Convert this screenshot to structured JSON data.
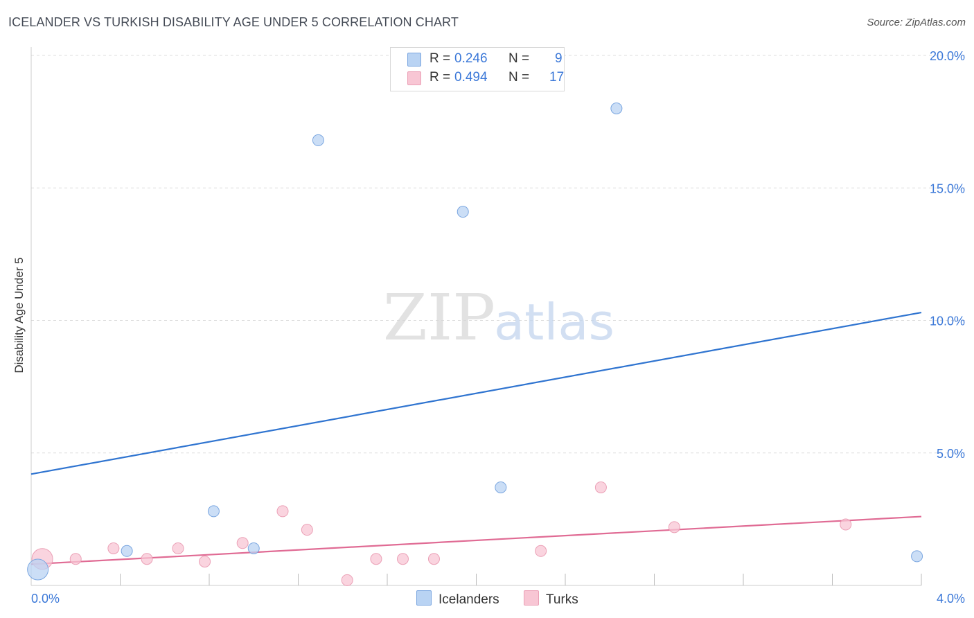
{
  "title": "ICELANDER VS TURKISH DISABILITY AGE UNDER 5 CORRELATION CHART",
  "source": "Source: ZipAtlas.com",
  "watermark": {
    "zip": "ZIP",
    "atlas": "atlas"
  },
  "colors": {
    "icelanders_fill": "#b9d3f3",
    "icelanders_stroke": "#7aa6e0",
    "icelanders_line": "#2f74d0",
    "turks_fill": "#f8c6d4",
    "turks_stroke": "#eba0b6",
    "turks_line": "#e06b94",
    "tick_label": "#3b78d8",
    "grid": "#dddddd"
  },
  "legend": {
    "rows": [
      {
        "r_label": "R =",
        "r_value": "0.246",
        "n_label": "N =",
        "n_value": "9"
      },
      {
        "r_label": "R =",
        "r_value": "0.494",
        "n_label": "N =",
        "n_value": "17"
      }
    ]
  },
  "chart_data": {
    "type": "scatter",
    "title": "ICELANDER VS TURKISH DISABILITY AGE UNDER 5 CORRELATION CHART",
    "xlabel": "",
    "ylabel": "Disability Age Under 5",
    "xlim": [
      0,
      4.0
    ],
    "ylim": [
      0,
      20.0
    ],
    "x_tick_labels": [
      "0.0%",
      "4.0%"
    ],
    "y_ticks": [
      5,
      10,
      15,
      20
    ],
    "y_tick_labels": [
      "5.0%",
      "10.0%",
      "15.0%",
      "20.0%"
    ],
    "series": [
      {
        "name": "Icelanders",
        "r": 0.246,
        "n": 9,
        "points": [
          {
            "x": 0.03,
            "y": 0.6,
            "big": true
          },
          {
            "x": 0.43,
            "y": 1.3
          },
          {
            "x": 0.82,
            "y": 2.8
          },
          {
            "x": 1.0,
            "y": 1.4
          },
          {
            "x": 1.29,
            "y": 16.8
          },
          {
            "x": 1.94,
            "y": 14.1
          },
          {
            "x": 2.11,
            "y": 3.7
          },
          {
            "x": 2.63,
            "y": 18.0
          },
          {
            "x": 3.98,
            "y": 1.1
          }
        ],
        "trend": {
          "x": [
            0,
            4.0
          ],
          "y": [
            4.2,
            10.3
          ]
        }
      },
      {
        "name": "Turks",
        "r": 0.494,
        "n": 17,
        "points": [
          {
            "x": 0.05,
            "y": 1.0,
            "big": true
          },
          {
            "x": 0.2,
            "y": 1.0
          },
          {
            "x": 0.37,
            "y": 1.4
          },
          {
            "x": 0.52,
            "y": 1.0
          },
          {
            "x": 0.66,
            "y": 1.4
          },
          {
            "x": 0.78,
            "y": 0.9
          },
          {
            "x": 0.95,
            "y": 1.6
          },
          {
            "x": 1.13,
            "y": 2.8
          },
          {
            "x": 1.24,
            "y": 2.1
          },
          {
            "x": 1.42,
            "y": 0.2
          },
          {
            "x": 1.55,
            "y": 1.0
          },
          {
            "x": 1.67,
            "y": 1.0
          },
          {
            "x": 1.81,
            "y": 1.0
          },
          {
            "x": 2.29,
            "y": 1.3
          },
          {
            "x": 2.56,
            "y": 3.7
          },
          {
            "x": 2.89,
            "y": 2.2
          },
          {
            "x": 3.66,
            "y": 2.3
          }
        ],
        "trend": {
          "x": [
            0,
            4.0
          ],
          "y": [
            0.8,
            2.6
          ]
        }
      }
    ]
  }
}
